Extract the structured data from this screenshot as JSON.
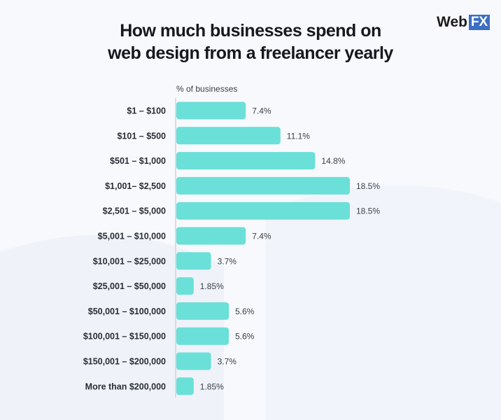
{
  "title_lines": [
    "How much businesses spend on",
    "web design from a freelancer yearly"
  ],
  "logo": {
    "text": "WebFX"
  },
  "colors": {
    "bar": "#6ae0d8",
    "axis": "#d8dbe4",
    "background": "#f8f9fd"
  },
  "chart_data": {
    "type": "bar",
    "orientation": "horizontal",
    "title": "How much businesses spend on web design from a freelancer yearly",
    "xlabel": "% of businesses",
    "categories": [
      "$1 – $100",
      "$101 – $500",
      "$501 – $1,000",
      "$1,001– $2,500",
      "$2,501 – $5,000",
      "$5,001 – $10,000",
      "$10,001 – $25,000",
      "$25,001 – $50,000",
      "$50,001 – $100,000",
      "$100,001 – $150,000",
      "$150,001 – $200,000",
      "More than $200,000"
    ],
    "values": [
      7.4,
      11.1,
      14.8,
      18.5,
      18.5,
      7.4,
      3.7,
      1.85,
      5.6,
      5.6,
      3.7,
      1.85
    ],
    "data_labels": [
      "7.4%",
      "11.1%",
      "14.8%",
      "18.5%",
      "18.5%",
      "7.4%",
      "3.7%",
      "1.85%",
      "5.6%",
      "5.6%",
      "3.7%",
      "1.85%"
    ],
    "grid": false
  }
}
